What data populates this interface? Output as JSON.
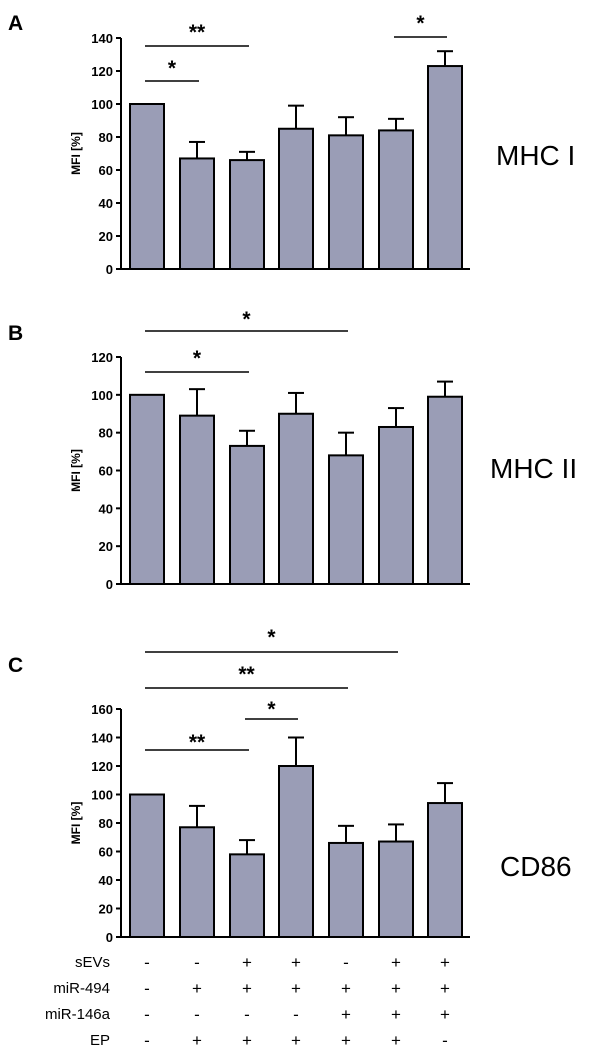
{
  "chart_data": [
    {
      "type": "bar",
      "panel": "A",
      "label": "MHC I",
      "ylabel": "MFI [%]",
      "ylim": [
        0,
        140
      ],
      "yticks": [
        0,
        20,
        40,
        60,
        80,
        100,
        120,
        140
      ],
      "values": [
        100,
        67,
        66,
        85,
        81,
        84,
        123
      ],
      "errors": [
        0,
        10,
        5,
        14,
        11,
        7,
        9
      ],
      "significance": [
        {
          "from": 1,
          "to": 2,
          "label": "*"
        },
        {
          "from": 1,
          "to": 3,
          "label": "**"
        },
        {
          "from": 6,
          "to": 7,
          "label": "*"
        }
      ]
    },
    {
      "type": "bar",
      "panel": "B",
      "label": "MHC II",
      "ylabel": "MFI [%]",
      "ylim": [
        0,
        120
      ],
      "yticks": [
        0,
        20,
        40,
        60,
        80,
        100,
        120
      ],
      "values": [
        100,
        89,
        73,
        90,
        68,
        83,
        99
      ],
      "errors": [
        0,
        14,
        8,
        11,
        12,
        10,
        8
      ],
      "significance": [
        {
          "from": 1,
          "to": 3,
          "label": "*"
        },
        {
          "from": 1,
          "to": 5,
          "label": "*"
        }
      ]
    },
    {
      "type": "bar",
      "panel": "C",
      "label": "CD86",
      "ylabel": "MFI [%]",
      "ylim": [
        0,
        160
      ],
      "yticks": [
        0,
        20,
        40,
        60,
        80,
        100,
        120,
        140,
        160
      ],
      "values": [
        100,
        77,
        58,
        120,
        66,
        67,
        94
      ],
      "errors": [
        0,
        15,
        10,
        20,
        12,
        12,
        14
      ],
      "significance": [
        {
          "from": 1,
          "to": 3,
          "label": "**"
        },
        {
          "from": 3,
          "to": 4,
          "label": "*"
        },
        {
          "from": 1,
          "to": 5,
          "label": "**"
        },
        {
          "from": 1,
          "to": 6,
          "label": "*"
        }
      ]
    }
  ],
  "conditions": [
    {
      "name": "sEVs",
      "signs": [
        "-",
        "-",
        "+",
        "+",
        "-",
        "+",
        "+"
      ]
    },
    {
      "name": "miR-494",
      "signs": [
        "-",
        "+",
        "+",
        "+",
        "+",
        "+",
        "+"
      ]
    },
    {
      "name": "miR-146a",
      "signs": [
        "-",
        "-",
        "-",
        "-",
        "+",
        "+",
        "+"
      ]
    },
    {
      "name": "EP",
      "signs": [
        "-",
        "+",
        "+",
        "+",
        "+",
        "+",
        "-"
      ]
    }
  ],
  "colors": {
    "bar_fill": "#9a9db6",
    "bar_stroke": "#000000",
    "axis": "#000000"
  }
}
